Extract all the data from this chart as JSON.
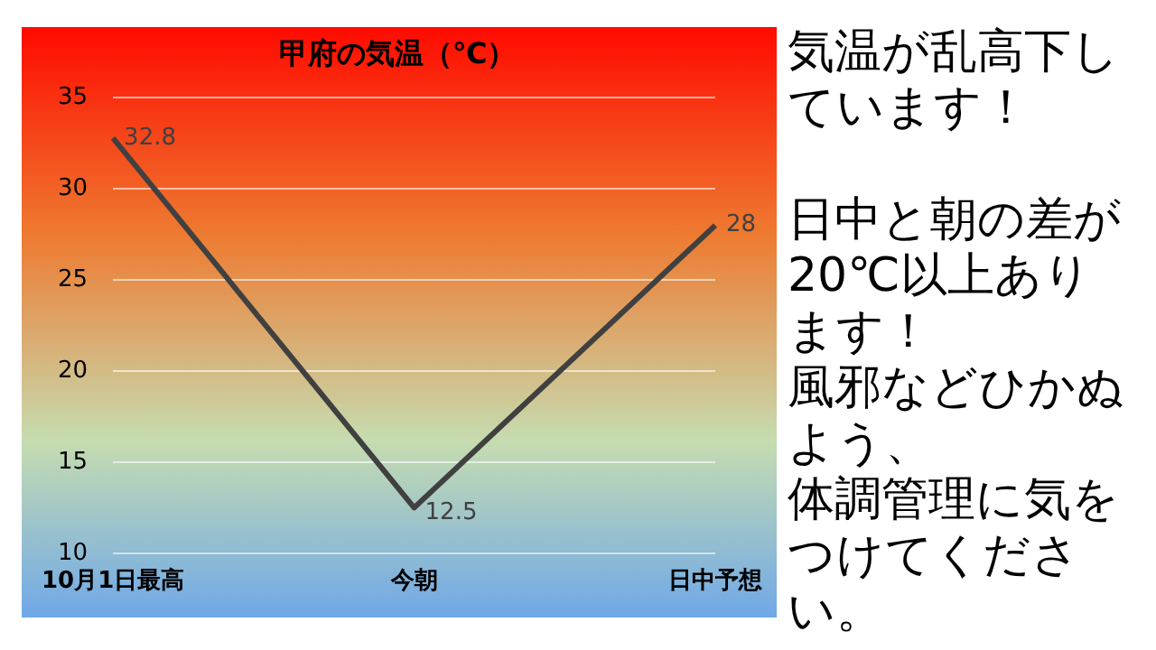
{
  "chart_data": {
    "type": "line",
    "title": "甲府の気温（℃）",
    "categories": [
      "10月1日最高",
      "今朝",
      "日中予想"
    ],
    "series": [
      {
        "color": "#404040",
        "values": [
          32.8,
          12.5,
          28
        ]
      }
    ],
    "ylim": [
      10,
      35
    ],
    "yticks": [
      10,
      15,
      20,
      25,
      30,
      35
    ],
    "grid": "y",
    "legend": false,
    "marker": "none",
    "line_style": "solid",
    "data_labels": true,
    "annotations": [
      "気温が乱高下しています！",
      "日中と朝の差が20℃以上あります！",
      "風邪などひかぬよう、",
      "体調管理に気をつけてください。"
    ]
  }
}
